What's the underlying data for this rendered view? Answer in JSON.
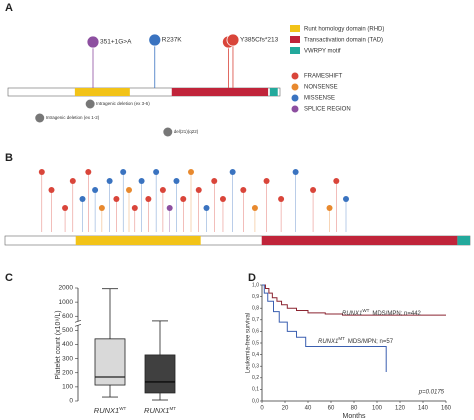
{
  "chart_data": [
    {
      "type": "lollipop",
      "panel": "A",
      "xlim": [
        0,
        480
      ],
      "domains": [
        {
          "name": "Runt homology domain (RHD)",
          "color": "#f2c318",
          "start": 118,
          "end": 215
        },
        {
          "name": "Transactivation domain (TAD)",
          "color": "#c0243a",
          "start": 289,
          "end": 459
        },
        {
          "name": "VWRPY motif",
          "color": "#23a99c",
          "start": 462,
          "end": 476
        }
      ],
      "mutation_types": [
        {
          "name": "FRAMESHIFT",
          "color": "#d9453a"
        },
        {
          "name": "NONSENSE",
          "color": "#e8892e"
        },
        {
          "name": "MISSENSE",
          "color": "#3a73c0"
        },
        {
          "name": "SPLICE REGION",
          "color": "#8d4fa0"
        }
      ],
      "mutations": [
        {
          "label": "351+1G>A",
          "kind": "SPLICE REGION",
          "position": 150
        },
        {
          "label": "R237K",
          "kind": "MISSENSE",
          "position": 259
        },
        {
          "label": null,
          "kind": "FRAMESHIFT",
          "position": 389
        },
        {
          "label": "Y385Cfs*213",
          "kind": "FRAMESHIFT",
          "position": 397
        }
      ],
      "deletions": [
        {
          "label": "Intragenic deletion (ex 3-6)",
          "position": 145
        },
        {
          "label": "Intragenic deletion (ex 1-2)",
          "position": 56
        },
        {
          "label": "del(21)(q22)",
          "position": 282
        }
      ]
    },
    {
      "type": "lollipop",
      "panel": "B",
      "xlim": [
        0,
        480
      ],
      "domains": [
        {
          "color": "#f2c318",
          "start": 73,
          "end": 202
        },
        {
          "color": "#c0243a",
          "start": 265,
          "end": 467
        },
        {
          "color": "#23a99c",
          "start": 467,
          "end": 480
        }
      ],
      "mutations": [
        {
          "kind": "FRAMESHIFT",
          "position": 38
        },
        {
          "kind": "FRAMESHIFT",
          "position": 48
        },
        {
          "kind": "FRAMESHIFT",
          "position": 62
        },
        {
          "kind": "FRAMESHIFT",
          "position": 70
        },
        {
          "kind": "MISSENSE",
          "position": 80
        },
        {
          "kind": "FRAMESHIFT",
          "position": 86
        },
        {
          "kind": "MISSENSE",
          "position": 93
        },
        {
          "kind": "NONSENSE",
          "position": 100
        },
        {
          "kind": "MISSENSE",
          "position": 108
        },
        {
          "kind": "FRAMESHIFT",
          "position": 115
        },
        {
          "kind": "MISSENSE",
          "position": 122
        },
        {
          "kind": "NONSENSE",
          "position": 128
        },
        {
          "kind": "FRAMESHIFT",
          "position": 134
        },
        {
          "kind": "MISSENSE",
          "position": 141
        },
        {
          "kind": "FRAMESHIFT",
          "position": 148
        },
        {
          "kind": "MISSENSE",
          "position": 156
        },
        {
          "kind": "FRAMESHIFT",
          "position": 163
        },
        {
          "kind": "SPLICE REGION",
          "position": 170
        },
        {
          "kind": "MISSENSE",
          "position": 177
        },
        {
          "kind": "FRAMESHIFT",
          "position": 184
        },
        {
          "kind": "NONSENSE",
          "position": 192
        },
        {
          "kind": "FRAMESHIFT",
          "position": 200
        },
        {
          "kind": "MISSENSE",
          "position": 208
        },
        {
          "kind": "FRAMESHIFT",
          "position": 216
        },
        {
          "kind": "FRAMESHIFT",
          "position": 225
        },
        {
          "kind": "MISSENSE",
          "position": 235
        },
        {
          "kind": "FRAMESHIFT",
          "position": 246
        },
        {
          "kind": "NONSENSE",
          "position": 258
        },
        {
          "kind": "FRAMESHIFT",
          "position": 270
        },
        {
          "kind": "FRAMESHIFT",
          "position": 285
        },
        {
          "kind": "MISSENSE",
          "position": 300
        },
        {
          "kind": "FRAMESHIFT",
          "position": 318
        },
        {
          "kind": "NONSENSE",
          "position": 335
        },
        {
          "kind": "FRAMESHIFT",
          "position": 342
        },
        {
          "kind": "MISSENSE",
          "position": 352
        }
      ]
    },
    {
      "type": "box",
      "panel": "C",
      "ylabel": "Platelet count (x10⁹/L)",
      "categories": [
        {
          "gene": "RUNX1",
          "sup": "WT"
        },
        {
          "gene": "RUNX1",
          "sup": "MT"
        }
      ],
      "colors": [
        "#d9d9d9",
        "#404040"
      ],
      "boxes": [
        {
          "min": 28,
          "q1": 113,
          "median": 170,
          "q3": 440,
          "max": 1950
        },
        {
          "min": 7,
          "q1": 57,
          "median": 135,
          "q3": 326,
          "max": 567
        }
      ],
      "ylim": [
        0,
        2000
      ],
      "yticks": [
        0,
        100,
        200,
        300,
        400,
        500,
        600,
        1000,
        2000
      ]
    },
    {
      "type": "line",
      "panel": "D",
      "xlabel": "Months",
      "ylabel": "Leukemia-free survival",
      "annotation": "p=0.0175",
      "xlim": [
        0,
        160
      ],
      "xticks": [
        0,
        20,
        40,
        60,
        80,
        100,
        120,
        140,
        160
      ],
      "ylim": [
        0,
        1
      ],
      "yticks": [
        {
          "value": 0,
          "label": "0,0"
        },
        {
          "value": 0.1,
          "label": "0,1"
        },
        {
          "value": 0.2,
          "label": "0,2"
        },
        {
          "value": 0.3,
          "label": "0,3"
        },
        {
          "value": 0.4,
          "label": "0,4"
        },
        {
          "value": 0.5,
          "label": "0,5"
        },
        {
          "value": 0.6,
          "label": "0,6"
        },
        {
          "value": 0.7,
          "label": "0,7"
        },
        {
          "value": 0.8,
          "label": "0,8"
        },
        {
          "value": 0.9,
          "label": "0,9"
        },
        {
          "value": 1,
          "label": "1,0"
        }
      ],
      "series": [
        {
          "gene": "RUNX1",
          "sup": "WT",
          "name": "MDS/MPN; n=442",
          "color": "#8b2430",
          "x": [
            0,
            3,
            3,
            6,
            6,
            9,
            9,
            13,
            13,
            17,
            17,
            22,
            22,
            30,
            30,
            40,
            40,
            55,
            55,
            70,
            70,
            160
          ],
          "values": [
            1,
            1,
            0.97,
            0.97,
            0.93,
            0.93,
            0.89,
            0.89,
            0.86,
            0.86,
            0.83,
            0.83,
            0.8,
            0.8,
            0.78,
            0.78,
            0.76,
            0.76,
            0.75,
            0.75,
            0.74,
            0.74
          ]
        },
        {
          "gene": "RUNX1",
          "sup": "MT",
          "name": "MDS/MPN; n=57",
          "color": "#3a5fb0",
          "x": [
            0,
            2,
            2,
            5,
            5,
            10,
            10,
            15,
            15,
            22,
            22,
            30,
            30,
            38,
            38,
            108,
            108
          ],
          "values": [
            1,
            1,
            0.93,
            0.93,
            0.86,
            0.86,
            0.77,
            0.77,
            0.68,
            0.68,
            0.6,
            0.6,
            0.55,
            0.55,
            0.47,
            0.47,
            0.25
          ]
        }
      ]
    }
  ]
}
